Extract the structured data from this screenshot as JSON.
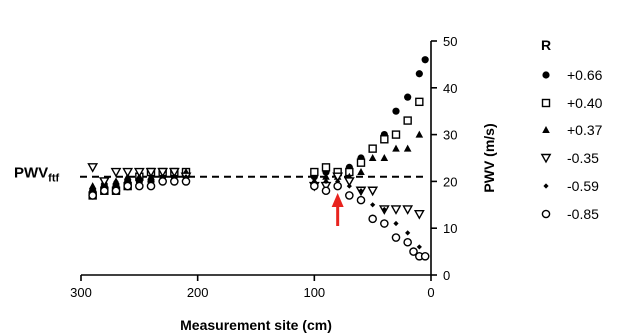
{
  "chart_data": {
    "type": "scatter",
    "xlabel": "Measurement site (cm)",
    "ylabel": "PWV (m/s)",
    "xlim": [
      300,
      0
    ],
    "ylim": [
      0,
      50
    ],
    "x_ticks": [
      "300",
      "200",
      "100",
      "0"
    ],
    "y_ticks": [
      "0",
      "10",
      "20",
      "30",
      "40",
      "50"
    ],
    "reference_line": {
      "label_main": "PWV",
      "label_sub": "ftf",
      "value": 21,
      "style": "dashed"
    },
    "annotation": {
      "type": "arrow",
      "color": "#e8231e",
      "x": 80,
      "direction": "up"
    },
    "legend": {
      "title": "R",
      "placement": "right"
    },
    "series": [
      {
        "name": "+0.66",
        "marker": "filled-circle",
        "points": [
          [
            290,
            18
          ],
          [
            280,
            19
          ],
          [
            270,
            19
          ],
          [
            260,
            20
          ],
          [
            250,
            20
          ],
          [
            240,
            20
          ],
          [
            230,
            21
          ],
          [
            220,
            21
          ],
          [
            210,
            21
          ],
          [
            100,
            21
          ],
          [
            90,
            22
          ],
          [
            80,
            22
          ],
          [
            70,
            23
          ],
          [
            60,
            25
          ],
          [
            50,
            27
          ],
          [
            40,
            30
          ],
          [
            30,
            35
          ],
          [
            20,
            38
          ],
          [
            10,
            43
          ],
          [
            5,
            46
          ]
        ]
      },
      {
        "name": "+0.40",
        "marker": "open-square",
        "points": [
          [
            290,
            17
          ],
          [
            280,
            18
          ],
          [
            270,
            18
          ],
          [
            260,
            19
          ],
          [
            250,
            21
          ],
          [
            240,
            22
          ],
          [
            230,
            22
          ],
          [
            220,
            22
          ],
          [
            210,
            22
          ],
          [
            100,
            22
          ],
          [
            90,
            23
          ],
          [
            80,
            22
          ],
          [
            70,
            22
          ],
          [
            60,
            24
          ],
          [
            50,
            27
          ],
          [
            40,
            29
          ],
          [
            30,
            30
          ],
          [
            20,
            33
          ],
          [
            10,
            37
          ]
        ]
      },
      {
        "name": "+0.37",
        "marker": "filled-triangle",
        "points": [
          [
            290,
            19
          ],
          [
            280,
            20
          ],
          [
            270,
            20
          ],
          [
            260,
            21
          ],
          [
            250,
            21
          ],
          [
            240,
            21
          ],
          [
            230,
            21
          ],
          [
            220,
            21
          ],
          [
            210,
            22
          ],
          [
            100,
            20
          ],
          [
            90,
            21
          ],
          [
            80,
            21
          ],
          [
            70,
            21
          ],
          [
            60,
            22
          ],
          [
            50,
            25
          ],
          [
            40,
            25
          ],
          [
            30,
            27
          ],
          [
            20,
            27
          ],
          [
            10,
            30
          ]
        ]
      },
      {
        "name": "-0.35",
        "marker": "open-triangle-down",
        "points": [
          [
            290,
            23
          ],
          [
            280,
            20
          ],
          [
            270,
            22
          ],
          [
            260,
            22
          ],
          [
            250,
            22
          ],
          [
            240,
            22
          ],
          [
            230,
            22
          ],
          [
            220,
            22
          ],
          [
            210,
            21
          ],
          [
            100,
            19
          ],
          [
            90,
            19
          ],
          [
            80,
            21
          ],
          [
            70,
            20
          ],
          [
            60,
            18
          ],
          [
            50,
            18
          ],
          [
            40,
            14
          ],
          [
            30,
            14
          ],
          [
            20,
            14
          ],
          [
            10,
            13
          ]
        ]
      },
      {
        "name": "-0.59",
        "marker": "small-diamond",
        "points": [
          [
            290,
            18
          ],
          [
            280,
            19
          ],
          [
            270,
            20
          ],
          [
            260,
            20
          ],
          [
            250,
            20
          ],
          [
            240,
            21
          ],
          [
            230,
            21
          ],
          [
            220,
            21
          ],
          [
            210,
            21
          ],
          [
            100,
            20
          ],
          [
            90,
            20
          ],
          [
            80,
            20
          ],
          [
            70,
            19
          ],
          [
            60,
            18
          ],
          [
            50,
            15
          ],
          [
            40,
            14
          ],
          [
            30,
            11
          ],
          [
            20,
            9
          ],
          [
            10,
            6
          ]
        ]
      },
      {
        "name": "-0.85",
        "marker": "open-circle",
        "points": [
          [
            290,
            17
          ],
          [
            280,
            18
          ],
          [
            270,
            18
          ],
          [
            260,
            19
          ],
          [
            250,
            19
          ],
          [
            240,
            19
          ],
          [
            230,
            20
          ],
          [
            220,
            20
          ],
          [
            210,
            20
          ],
          [
            100,
            19
          ],
          [
            90,
            18
          ],
          [
            80,
            19
          ],
          [
            70,
            17
          ],
          [
            60,
            16
          ],
          [
            50,
            12
          ],
          [
            40,
            11
          ],
          [
            30,
            8
          ],
          [
            20,
            7
          ],
          [
            15,
            5
          ],
          [
            10,
            4
          ],
          [
            5,
            4
          ]
        ]
      }
    ]
  }
}
